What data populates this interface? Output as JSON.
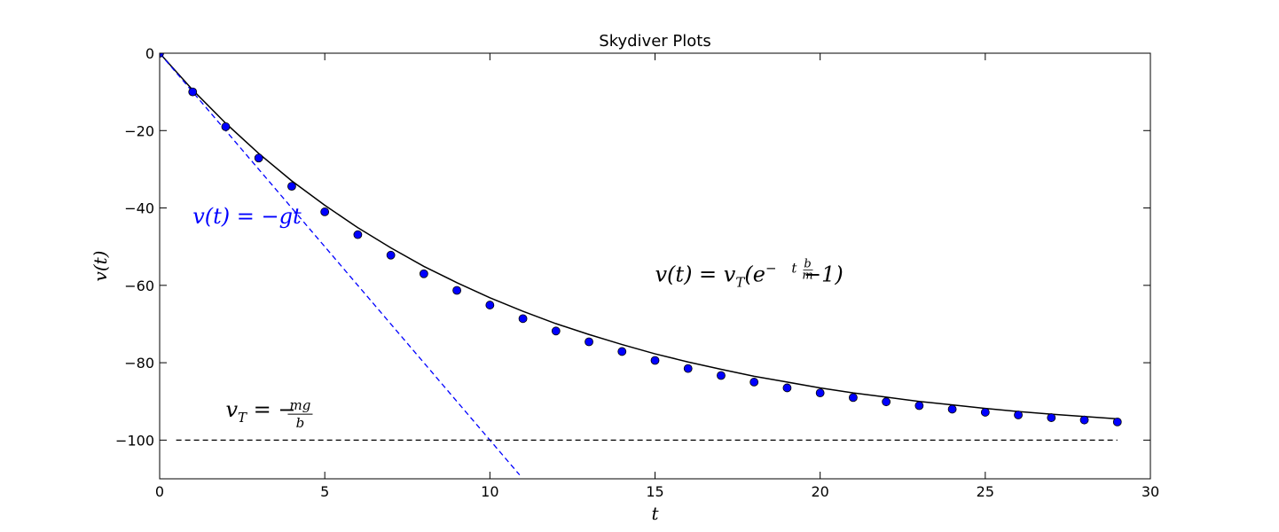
{
  "chart_data": {
    "type": "line",
    "title": "Skydiver Plots",
    "xlabel": "t",
    "ylabel": "v(t)",
    "xlim": [
      0,
      30
    ],
    "ylim": [
      -110,
      0
    ],
    "xticks": [
      0,
      5,
      10,
      15,
      20,
      25,
      30
    ],
    "yticks": [
      0,
      -20,
      -40,
      -60,
      -80,
      -100
    ],
    "xtick_labels": [
      "0",
      "5",
      "10",
      "15",
      "20",
      "25",
      "30"
    ],
    "ytick_labels": [
      "0",
      "−20",
      "−40",
      "−60",
      "−80",
      "−100"
    ],
    "grid": false,
    "colors": {
      "model": "#000000",
      "points": "#0000ff",
      "freefall": "#0000ff",
      "terminal": "#000000"
    },
    "series": [
      {
        "style": "solid-line",
        "x": [
          0,
          1,
          2,
          3,
          4,
          5,
          6,
          7,
          8,
          9,
          10,
          11,
          12,
          13,
          14,
          15,
          16,
          17,
          18,
          19,
          20,
          21,
          22,
          23,
          24,
          25,
          26,
          27,
          28,
          29
        ],
        "y": [
          0,
          -9.5,
          -18.1,
          -25.9,
          -33.0,
          -39.3,
          -45.1,
          -50.3,
          -55.1,
          -59.3,
          -63.2,
          -66.7,
          -69.9,
          -72.7,
          -75.3,
          -77.7,
          -79.8,
          -81.7,
          -83.5,
          -85.0,
          -86.5,
          -87.8,
          -88.9,
          -90.0,
          -90.9,
          -91.8,
          -92.6,
          -93.3,
          -93.9,
          -94.5
        ]
      },
      {
        "style": "dots",
        "x": [
          0,
          1,
          2,
          3,
          4,
          5,
          6,
          7,
          8,
          9,
          10,
          11,
          12,
          13,
          14,
          15,
          16,
          17,
          18,
          19,
          20,
          21,
          22,
          23,
          24,
          25,
          26,
          27,
          28,
          29
        ],
        "y": [
          0,
          -10.0,
          -19.0,
          -27.1,
          -34.4,
          -41.0,
          -46.9,
          -52.2,
          -57.0,
          -61.3,
          -65.1,
          -68.6,
          -71.8,
          -74.6,
          -77.1,
          -79.4,
          -81.5,
          -83.3,
          -85.0,
          -86.5,
          -87.8,
          -89.0,
          -90.1,
          -91.1,
          -92.0,
          -92.8,
          -93.5,
          -94.2,
          -94.8,
          -95.3
        ]
      },
      {
        "style": "dashed-line",
        "x": [
          0,
          10.9
        ],
        "y": [
          0,
          -109
        ]
      },
      {
        "style": "dashed-line",
        "x": [
          0.5,
          29
        ],
        "y": [
          -100,
          -100
        ]
      }
    ],
    "annotations": [
      {
        "id": "freefall",
        "lhs": "v(t)",
        "eq": " = ",
        "rhs": "−gt",
        "x": 1.0,
        "y": -44
      },
      {
        "id": "model",
        "pre": "v(t) = v",
        "sub": "T",
        "mid": "(e",
        "sup_num": "b",
        "sup_den": "m",
        "sup_pre": "−",
        "sup_post": "t",
        "post": " −1)",
        "x": 15.0,
        "y": -59
      },
      {
        "id": "terminal",
        "pre": "v",
        "sub": "T",
        "eq": " = −",
        "num": "mg",
        "den": "b",
        "x": 2.0,
        "y": -94
      }
    ]
  }
}
